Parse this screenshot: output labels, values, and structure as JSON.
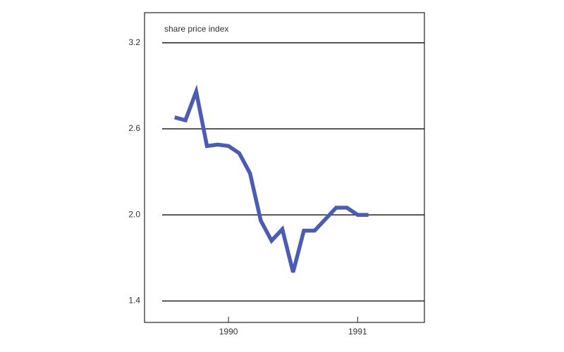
{
  "chart_data": {
    "type": "line",
    "y_label": "share price index",
    "x": [
      0,
      1,
      2,
      3,
      4,
      5,
      6,
      7,
      8,
      9,
      10,
      11,
      12,
      13,
      14,
      15,
      16,
      17,
      18
    ],
    "series": [
      {
        "color": "#4a5cb8",
        "values": [
          2.68,
          2.66,
          2.86,
          2.48,
          2.49,
          2.48,
          2.43,
          2.29,
          1.96,
          1.82,
          1.9,
          1.6,
          1.89,
          1.89,
          1.97,
          2.05,
          2.05,
          2.0,
          2.0
        ]
      }
    ],
    "xlim": [
      -2.8,
      23.2
    ],
    "xticks": [
      {
        "value": 5,
        "label": "1990"
      },
      {
        "value": 17,
        "label": "1991"
      }
    ],
    "ylim": [
      1.25,
      3.41
    ],
    "yticks": [
      {
        "value": 1.4,
        "label": "1.4"
      },
      {
        "value": 2.0,
        "label": "2.0"
      },
      {
        "value": 2.6,
        "label": "2.6"
      },
      {
        "value": 3.2,
        "label": "3.2"
      }
    ],
    "grid": true
  }
}
